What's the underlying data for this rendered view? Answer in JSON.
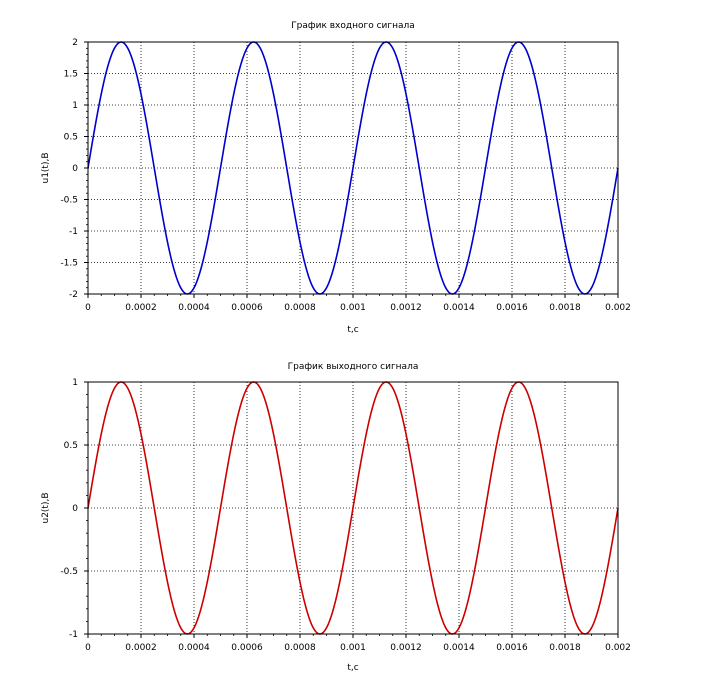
{
  "chart_data": [
    {
      "type": "line",
      "title": "График входного сигнала",
      "xlabel": "t,c",
      "ylabel": "u1(t),B",
      "xlim": [
        0,
        0.002
      ],
      "ylim": [
        -2,
        2
      ],
      "x_ticks": [
        "0",
        "0.0002",
        "0.0004",
        "0.0006",
        "0.0008",
        "0.001",
        "0.0012",
        "0.0014",
        "0.0016",
        "0.0018",
        "0.002"
      ],
      "y_ticks": [
        "2",
        "1.5",
        "1",
        "0.5",
        "0",
        "-0.5",
        "-1",
        "-1.5",
        "-2"
      ],
      "grid": true,
      "series": [
        {
          "function": "sine",
          "amplitude": 2,
          "frequency_hz": 2000,
          "x_range": [
            0,
            0.002
          ],
          "color": "#0000cc"
        }
      ]
    },
    {
      "type": "line",
      "title": "График выходного сигнала",
      "xlabel": "t,c",
      "ylabel": "u2(t),B",
      "xlim": [
        0,
        0.002
      ],
      "ylim": [
        -1,
        1
      ],
      "x_ticks": [
        "0",
        "0.0002",
        "0.0004",
        "0.0006",
        "0.0008",
        "0.001",
        "0.0012",
        "0.0014",
        "0.0016",
        "0.0018",
        "0.002"
      ],
      "y_ticks": [
        "1",
        "0.5",
        "0",
        "-0.5",
        "-1"
      ],
      "grid": true,
      "series": [
        {
          "function": "sine",
          "amplitude": 1,
          "frequency_hz": 2000,
          "x_range": [
            0,
            0.002
          ],
          "color": "#cc0000"
        }
      ]
    }
  ]
}
